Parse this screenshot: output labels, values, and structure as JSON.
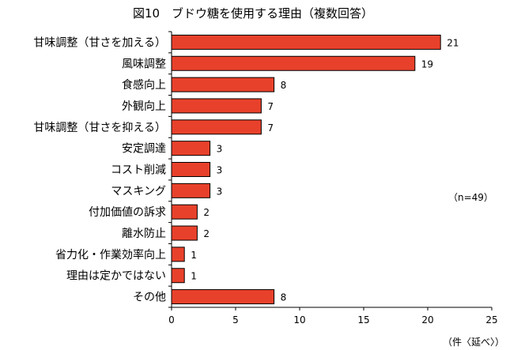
{
  "chart_data": {
    "type": "bar",
    "orientation": "horizontal",
    "title": "図10　ブドウ糖を使用する理由（複数回答）",
    "categories": [
      "甘味調整（甘さを加える）",
      "風味調整",
      "食感向上",
      "外観向上",
      "甘味調整（甘さを抑える）",
      "安定調達",
      "コスト削減",
      "マスキング",
      "付加価値の訴求",
      "離水防止",
      "省力化・作業効率向上",
      "理由は定かではない",
      "その他"
    ],
    "values": [
      21,
      19,
      8,
      7,
      7,
      3,
      3,
      3,
      2,
      2,
      1,
      1,
      8
    ],
    "xlim": [
      0,
      25
    ],
    "xticks": [
      0,
      5,
      10,
      15,
      20,
      25
    ],
    "unit_label": "（件〈延べ〉）",
    "annotation": "（n=49）",
    "bar_color": "#e8412b",
    "bar_border": "#000000",
    "grid": false
  }
}
